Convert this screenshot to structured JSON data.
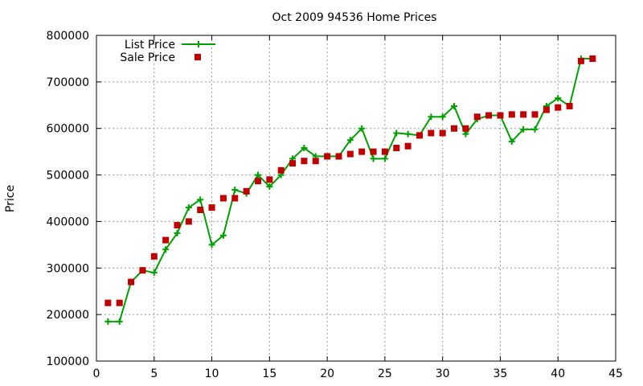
{
  "chart_data": {
    "type": "line",
    "title": "Oct 2009 94536 Home Prices",
    "xlabel": "",
    "ylabel": "Price",
    "xlim": [
      0,
      45
    ],
    "ylim": [
      100000,
      800000
    ],
    "xticks": [
      0,
      5,
      10,
      15,
      20,
      25,
      30,
      35,
      40,
      45
    ],
    "yticks": [
      100000,
      200000,
      300000,
      400000,
      500000,
      600000,
      700000,
      800000
    ],
    "grid": true,
    "legend_position": "top-left",
    "x": [
      1,
      2,
      3,
      4,
      5,
      6,
      7,
      8,
      9,
      10,
      11,
      12,
      13,
      14,
      15,
      16,
      17,
      18,
      19,
      20,
      21,
      22,
      23,
      24,
      25,
      26,
      27,
      28,
      29,
      30,
      31,
      32,
      33,
      34,
      35,
      36,
      37,
      38,
      39,
      40,
      41,
      42,
      43
    ],
    "series": [
      {
        "name": "List Price",
        "style": "line-plus",
        "color": "#00a000",
        "values": [
          185000,
          185000,
          270000,
          295000,
          290000,
          340000,
          375000,
          430000,
          447000,
          350000,
          370000,
          468000,
          460000,
          500000,
          475000,
          500000,
          535000,
          558000,
          540000,
          540000,
          540000,
          575000,
          600000,
          535000,
          535000,
          590000,
          588000,
          585000,
          625000,
          625000,
          648000,
          588000,
          620000,
          628000,
          628000,
          572000,
          598000,
          598000,
          648000,
          665000,
          648000,
          750000,
          750000
        ]
      },
      {
        "name": "Sale Price",
        "style": "points-square",
        "color": "#c00000",
        "values": [
          225000,
          225000,
          270000,
          295000,
          325000,
          360000,
          392000,
          400000,
          425000,
          430000,
          450000,
          450000,
          465000,
          487000,
          490000,
          510000,
          525000,
          530000,
          530000,
          540000,
          540000,
          545000,
          550000,
          550000,
          550000,
          558000,
          562000,
          585000,
          590000,
          590000,
          600000,
          600000,
          625000,
          628000,
          628000,
          630000,
          630000,
          630000,
          640000,
          645000,
          648000,
          745000,
          750000
        ]
      }
    ]
  }
}
